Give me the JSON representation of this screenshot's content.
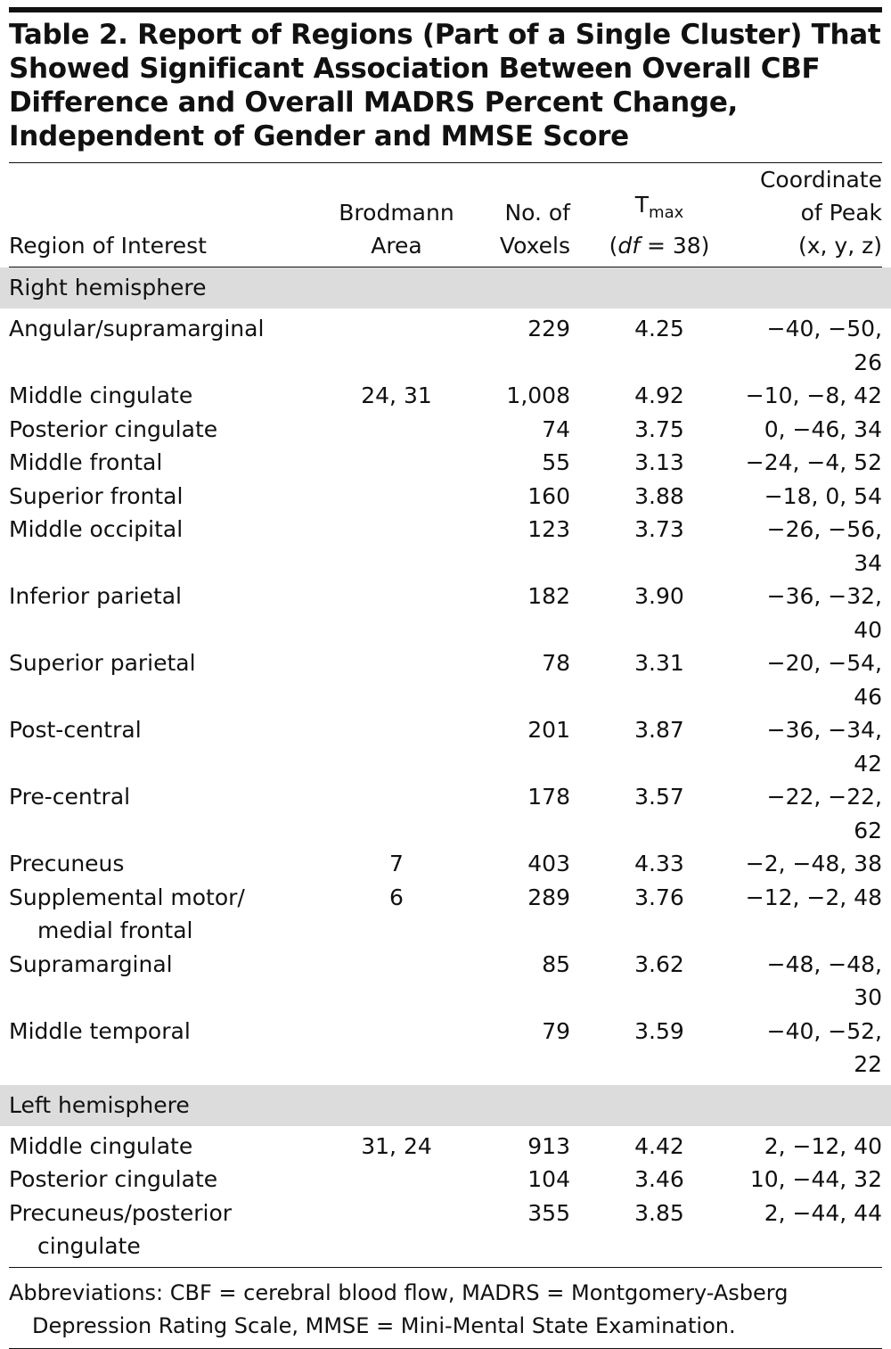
{
  "table": {
    "title": "Table 2. Report of Regions (Part of a Single Cluster) That Showed Significant Association Between Overall CBF Difference and Overall MADRS Percent Change, Independent of Gender and MMSE Score",
    "columns": [
      {
        "lines": [
          "Region of Interest"
        ]
      },
      {
        "lines": [
          "Brodmann",
          "Area"
        ]
      },
      {
        "lines": [
          "No. of",
          "Voxels"
        ]
      },
      {
        "symbol": "T",
        "subscript": "max",
        "open": "(",
        "italic": "df",
        "rest": " = 38",
        "close": ")"
      },
      {
        "lines": [
          "Coordinate",
          "of Peak",
          "(x, y, z)"
        ]
      }
    ],
    "sections": [
      {
        "name": "Right hemisphere",
        "rows": [
          {
            "region": [
              "Angular/supramarginal"
            ],
            "brodmann": null,
            "voxels": "229",
            "tmax": "4.25",
            "peak": "−40, −50, 26"
          },
          {
            "region": [
              "Middle cingulate"
            ],
            "brodmann": "24, 31",
            "voxels": "1,008",
            "tmax": "4.92",
            "peak": "−10, −8, 42"
          },
          {
            "region": [
              "Posterior cingulate"
            ],
            "brodmann": null,
            "voxels": "74",
            "tmax": "3.75",
            "peak": "0, −46, 34"
          },
          {
            "region": [
              "Middle frontal"
            ],
            "brodmann": null,
            "voxels": "55",
            "tmax": "3.13",
            "peak": "−24, −4, 52"
          },
          {
            "region": [
              "Superior frontal"
            ],
            "brodmann": null,
            "voxels": "160",
            "tmax": "3.88",
            "peak": "−18, 0, 54"
          },
          {
            "region": [
              "Middle occipital"
            ],
            "brodmann": null,
            "voxels": "123",
            "tmax": "3.73",
            "peak": "−26, −56, 34"
          },
          {
            "region": [
              "Inferior parietal"
            ],
            "brodmann": null,
            "voxels": "182",
            "tmax": "3.90",
            "peak": "−36, −32, 40"
          },
          {
            "region": [
              "Superior parietal"
            ],
            "brodmann": null,
            "voxels": "78",
            "tmax": "3.31",
            "peak": "−20, −54, 46"
          },
          {
            "region": [
              "Post-central"
            ],
            "brodmann": null,
            "voxels": "201",
            "tmax": "3.87",
            "peak": "−36, −34, 42"
          },
          {
            "region": [
              "Pre-central"
            ],
            "brodmann": null,
            "voxels": "178",
            "tmax": "3.57",
            "peak": "−22, −22, 62"
          },
          {
            "region": [
              "Precuneus"
            ],
            "brodmann": "7",
            "voxels": "403",
            "tmax": "4.33",
            "peak": "−2, −48, 38"
          },
          {
            "region": [
              "Supplemental motor/",
              "medial frontal"
            ],
            "brodmann": "6",
            "voxels": "289",
            "tmax": "3.76",
            "peak": "−12, −2, 48"
          },
          {
            "region": [
              "Supramarginal"
            ],
            "brodmann": null,
            "voxels": "85",
            "tmax": "3.62",
            "peak": "−48, −48, 30"
          },
          {
            "region": [
              "Middle temporal"
            ],
            "brodmann": null,
            "voxels": "79",
            "tmax": "3.59",
            "peak": "−40, −52, 22"
          }
        ]
      },
      {
        "name": "Left hemisphere",
        "rows": [
          {
            "region": [
              "Middle cingulate"
            ],
            "brodmann": "31, 24",
            "voxels": "913",
            "tmax": "4.42",
            "peak": "2, −12, 40"
          },
          {
            "region": [
              "Posterior cingulate"
            ],
            "brodmann": null,
            "voxels": "104",
            "tmax": "3.46",
            "peak": "10, −44, 32"
          },
          {
            "region": [
              "Precuneus/posterior",
              "cingulate"
            ],
            "brodmann": null,
            "voxels": "355",
            "tmax": "3.85",
            "peak": "2, −44, 44"
          }
        ]
      }
    ],
    "footnote": "Abbreviations: CBF = cerebral blood flow, MADRS = Montgomery-Asberg Depression Rating Scale, MMSE = Mini-Mental State Examination."
  }
}
